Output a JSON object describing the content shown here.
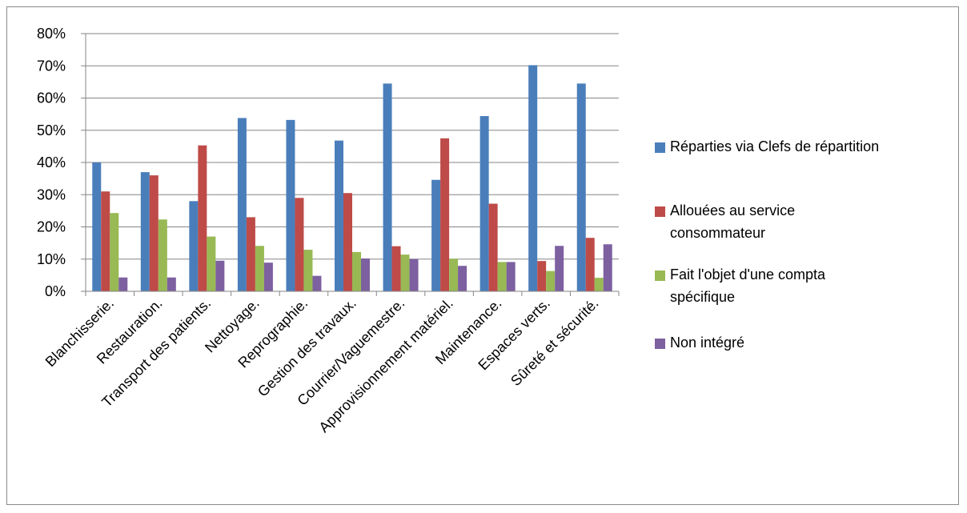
{
  "chart_data": {
    "type": "bar",
    "categories": [
      "Blanchisserie.",
      "Restauration.",
      "Transport des patients.",
      "Nettoyage.",
      "Reprographie.",
      "Gestion des travaux.",
      "Courrier/Vaguemestre.",
      "Approvisionnement matériel.",
      "Maintenance.",
      "Espaces verts.",
      "Sûreté et sécurité."
    ],
    "series": [
      {
        "name": "Réparties via Clefs de répartition",
        "color": "#4a7ebb",
        "values": [
          40,
          37,
          28,
          53.8,
          53.2,
          46.8,
          64.5,
          34.6,
          54.4,
          70.2,
          64.5
        ]
      },
      {
        "name": "Allouées au service consommateur",
        "color": "#be4b48",
        "values": [
          31,
          36,
          45.3,
          23,
          29,
          30.5,
          14,
          47.5,
          27.2,
          9.4,
          16.6
        ]
      },
      {
        "name": "Fait l'objet d'une compta spécifique",
        "color": "#98b954",
        "values": [
          24.3,
          22.3,
          17,
          14.1,
          12.9,
          12.2,
          11.4,
          10.1,
          9.1,
          6.3,
          4.2
        ]
      },
      {
        "name": "Non intégré",
        "color": "#7d60a0",
        "values": [
          4.3,
          4.3,
          9.5,
          8.9,
          4.8,
          10.2,
          10,
          7.9,
          9.1,
          14.1,
          14.6
        ]
      }
    ],
    "y_ticks": [
      "0%",
      "10%",
      "20%",
      "30%",
      "40%",
      "50%",
      "60%",
      "70%",
      "80%"
    ],
    "ylim": [
      0,
      80
    ],
    "y_unit": "percent",
    "grid": true,
    "legend_position": "right",
    "title": "",
    "xlabel": "",
    "ylabel": ""
  }
}
